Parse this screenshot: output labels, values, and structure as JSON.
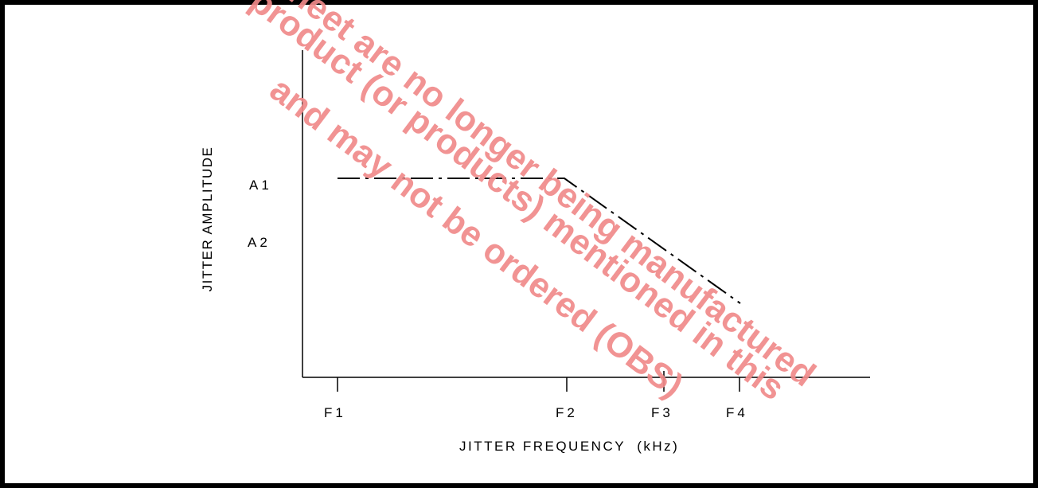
{
  "diagram": {
    "y_axis_title": "JITTER AMPLITUDE",
    "x_axis_title": "JITTER FREQUENCY  (kHz)",
    "y_ticks": [
      {
        "label": "A1"
      },
      {
        "label": "A2"
      }
    ],
    "x_ticks": [
      {
        "label": "F1"
      },
      {
        "label": "F2"
      },
      {
        "label": "F3"
      },
      {
        "label": "F4"
      }
    ]
  },
  "watermark": {
    "lines": [
      "This product (or products) mentioned in this",
      "sheet are no longer being manufactured",
      "and may not be ordered (OBS)"
    ],
    "color": "#f08a8a"
  },
  "colors": {
    "ink": "#000000",
    "background": "#ffffff"
  }
}
